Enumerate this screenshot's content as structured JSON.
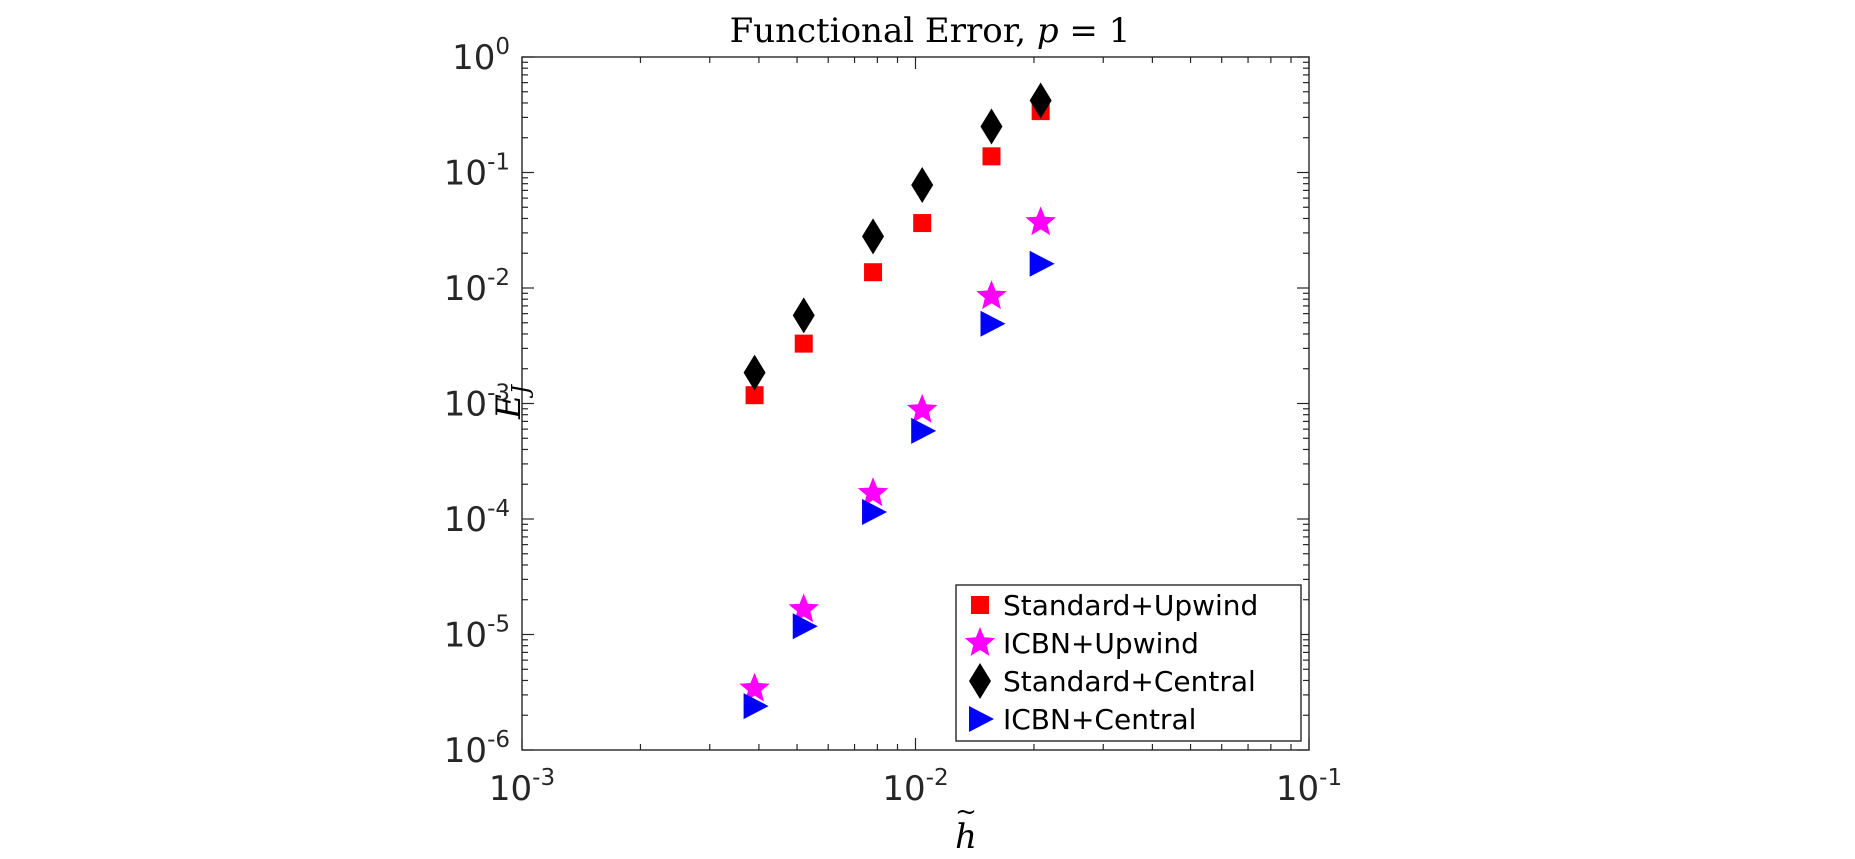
{
  "chart_data": {
    "type": "scatter",
    "title": {
      "main": "Functional Error, ",
      "italic_var": "p",
      "rest": " = 1"
    },
    "xlabel": {
      "main": "h",
      "accent": "~"
    },
    "ylabel": {
      "main": "E",
      "sub": "J"
    },
    "xscale": "log",
    "yscale": "log",
    "xlim": [
      0.001,
      0.1
    ],
    "ylim": [
      1e-06,
      1
    ],
    "xticks": [
      {
        "value": 0.001,
        "base": "10",
        "exp": "-3"
      },
      {
        "value": 0.01,
        "base": "10",
        "exp": "-2"
      },
      {
        "value": 0.1,
        "base": "10",
        "exp": "-1"
      }
    ],
    "yticks": [
      {
        "value": 1e-06,
        "base": "10",
        "exp": "-6"
      },
      {
        "value": 1e-05,
        "base": "10",
        "exp": "-5"
      },
      {
        "value": 0.0001,
        "base": "10",
        "exp": "-4"
      },
      {
        "value": 0.001,
        "base": "10",
        "exp": "-3"
      },
      {
        "value": 0.01,
        "base": "10",
        "exp": "-2"
      },
      {
        "value": 0.1,
        "base": "10",
        "exp": "-1"
      },
      {
        "value": 1,
        "base": "10",
        "exp": "0"
      }
    ],
    "grid": false,
    "legend_position": "bottom-right",
    "series": [
      {
        "name": "Standard+Upwind",
        "marker": "square",
        "color": "#ff0000",
        "x": [
          0.0039,
          0.0052,
          0.0078,
          0.0104,
          0.0156,
          0.0208
        ],
        "y": [
          0.00118,
          0.0033,
          0.0137,
          0.0365,
          0.138,
          0.34
        ]
      },
      {
        "name": "ICBN+Upwind",
        "marker": "star",
        "color": "#ff00ff",
        "x": [
          0.0039,
          0.0052,
          0.0078,
          0.0104,
          0.0156,
          0.0208
        ],
        "y": [
          3.4e-06,
          1.65e-05,
          0.000167,
          0.00088,
          0.0085,
          0.037
        ]
      },
      {
        "name": "Standard+Central",
        "marker": "diamond",
        "color": "#000000",
        "x": [
          0.0039,
          0.0052,
          0.0078,
          0.0104,
          0.0156,
          0.0208
        ],
        "y": [
          0.00185,
          0.0058,
          0.028,
          0.078,
          0.25,
          0.42
        ]
      },
      {
        "name": "ICBN+Central",
        "marker": "triangle-right",
        "color": "#0000ff",
        "x": [
          0.0039,
          0.0052,
          0.0078,
          0.0104,
          0.0156,
          0.0208
        ],
        "y": [
          2.4e-06,
          1.18e-05,
          0.000115,
          0.00058,
          0.0049,
          0.0162
        ]
      }
    ]
  }
}
